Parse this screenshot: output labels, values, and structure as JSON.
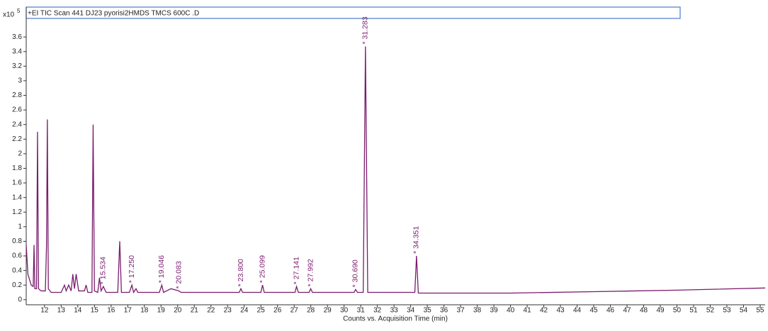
{
  "chart_data": {
    "type": "line",
    "title": "+EI TIC Scan 441 DJ23 pyorisi2HMDS TMCS 600C .D",
    "x_label": "Counts vs. Acquisition Time (min)",
    "y_multiplier": {
      "base": "x10",
      "exponent": "5"
    },
    "color": "#7a1d6e",
    "x": [
      10.9,
      11.0,
      11.2,
      11.32,
      11.37,
      11.42,
      11.52,
      11.58,
      11.64,
      11.8,
      12.05,
      12.12,
      12.17,
      12.23,
      12.4,
      13.0,
      13.2,
      13.3,
      13.45,
      13.6,
      13.7,
      13.8,
      13.9,
      14.05,
      14.4,
      14.5,
      14.6,
      14.85,
      14.92,
      15.0,
      15.2,
      15.3,
      15.4,
      15.534,
      15.7,
      16.4,
      16.52,
      16.62,
      17.1,
      17.25,
      17.35,
      17.5,
      17.6,
      18.9,
      19.046,
      19.15,
      19.6,
      20.083,
      20.2,
      23.7,
      23.8,
      23.9,
      25.0,
      25.099,
      25.2,
      27.05,
      27.141,
      27.25,
      27.9,
      27.992,
      28.1,
      30.6,
      30.69,
      30.8,
      31.15,
      31.283,
      31.42,
      34.25,
      34.351,
      34.46,
      40,
      45,
      50,
      55.3
    ],
    "values": [
      0.75,
      0.35,
      0.2,
      0.18,
      0.75,
      0.15,
      0.15,
      2.3,
      0.15,
      0.12,
      0.12,
      0.75,
      2.47,
      0.15,
      0.1,
      0.1,
      0.2,
      0.12,
      0.2,
      0.12,
      0.35,
      0.15,
      0.35,
      0.12,
      0.12,
      0.2,
      0.1,
      0.1,
      2.4,
      0.12,
      0.1,
      0.3,
      0.12,
      0.18,
      0.1,
      0.1,
      0.8,
      0.1,
      0.1,
      0.2,
      0.1,
      0.15,
      0.1,
      0.1,
      0.2,
      0.1,
      0.15,
      0.12,
      0.1,
      0.1,
      0.15,
      0.1,
      0.1,
      0.2,
      0.1,
      0.1,
      0.18,
      0.1,
      0.1,
      0.15,
      0.1,
      0.1,
      0.14,
      0.1,
      0.1,
      3.47,
      0.1,
      0.1,
      0.6,
      0.09,
      0.09,
      0.11,
      0.13,
      0.16
    ],
    "peak_labels": [
      {
        "value": 15.534,
        "label": "* 15.534"
      },
      {
        "value": 17.25,
        "label": "* 17.250"
      },
      {
        "value": 19.046,
        "label": "* 19.046"
      },
      {
        "value": 20.083,
        "label": "* 20.083"
      },
      {
        "value": 23.8,
        "label": "* 23.800"
      },
      {
        "value": 25.099,
        "label": "* 25.099"
      },
      {
        "value": 27.141,
        "label": "* 27.141"
      },
      {
        "value": 27.992,
        "label": "* 27.992"
      },
      {
        "value": 30.69,
        "label": "* 30.690"
      },
      {
        "value": 31.283,
        "label": "* 31.283"
      },
      {
        "value": 34.351,
        "label": "* 34.351"
      }
    ],
    "xlim": [
      10.9,
      55.3
    ],
    "ylim": [
      -0.07,
      3.99
    ],
    "xticks": [
      12,
      13,
      14,
      15,
      16,
      17,
      18,
      19,
      20,
      21,
      22,
      23,
      24,
      25,
      26,
      27,
      28,
      29,
      30,
      31,
      32,
      33,
      34,
      35,
      36,
      37,
      38,
      39,
      40,
      41,
      42,
      43,
      44,
      45,
      46,
      47,
      48,
      49,
      50,
      51,
      52,
      53,
      54,
      55
    ],
    "yticks": [
      0,
      0.2,
      0.4,
      0.6,
      0.8,
      1,
      1.2,
      1.4,
      1.6,
      1.8,
      2,
      2.2,
      2.4,
      2.6,
      2.8,
      3,
      3.2,
      3.4,
      3.6
    ]
  }
}
